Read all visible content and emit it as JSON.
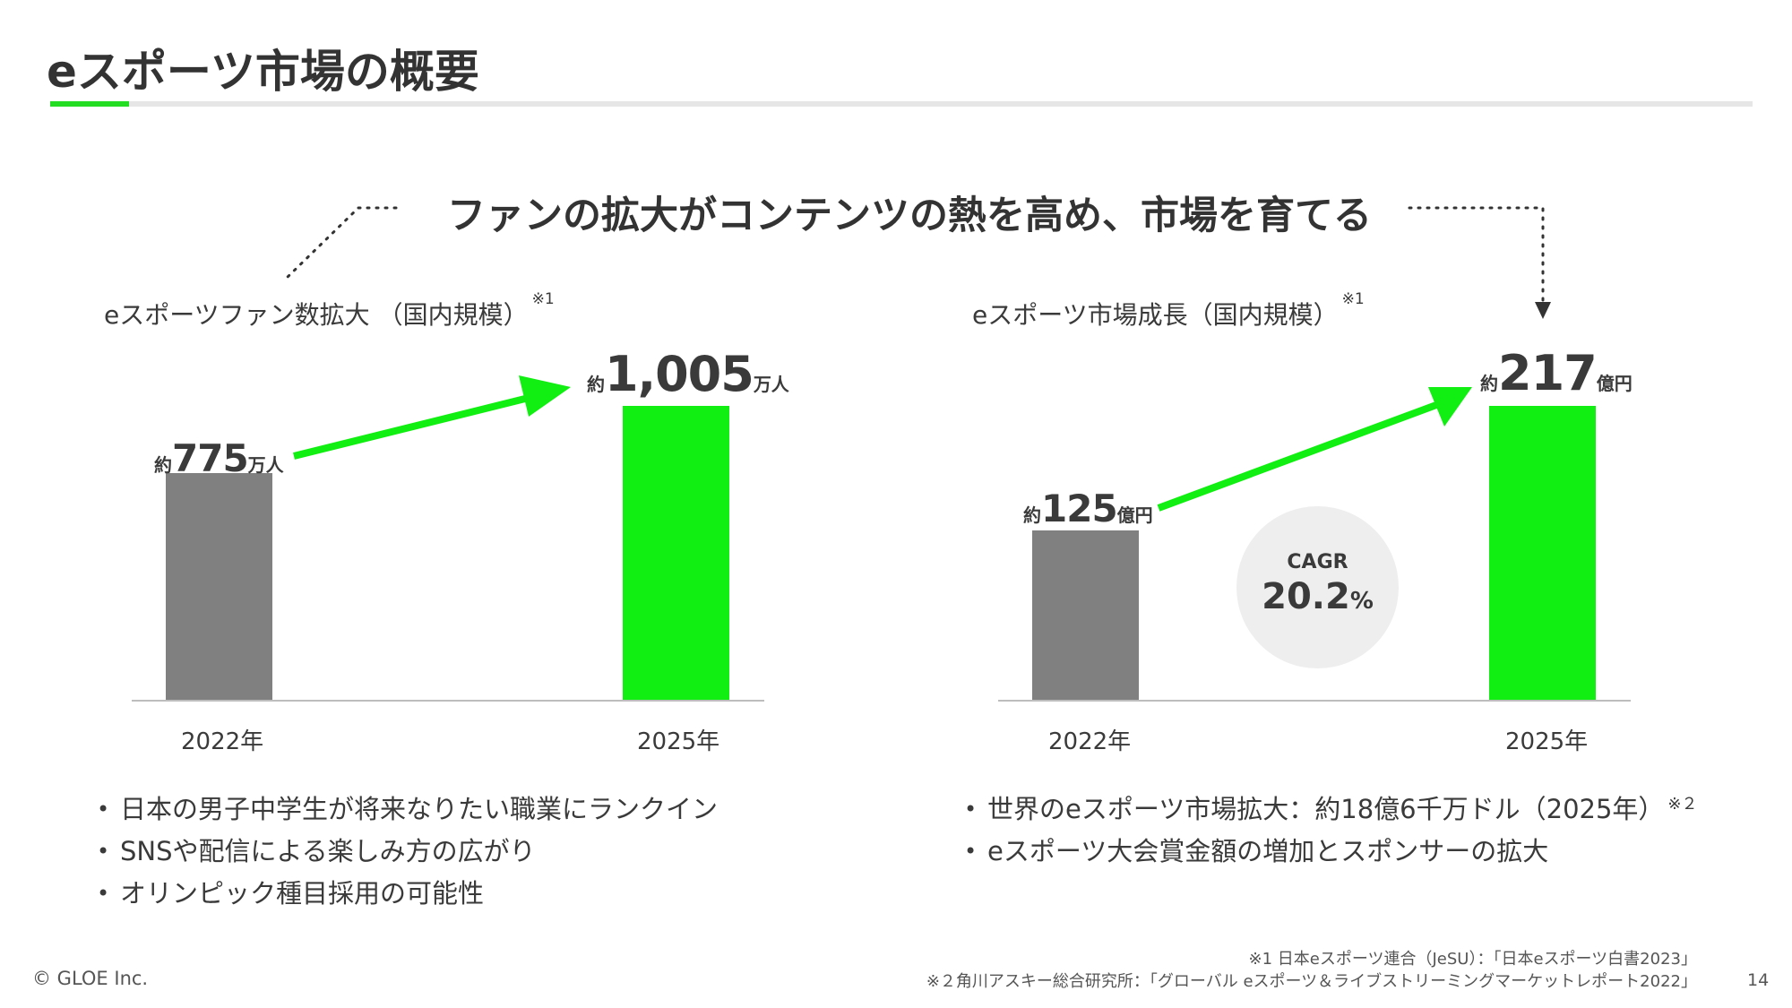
{
  "header": {
    "title": "eスポーツ市場の概要"
  },
  "headline": "ファンの拡大がコンテンツの熱を高め、市場を育てる",
  "colors": {
    "accent": "#11ee11",
    "bar_2022": "#808080",
    "text": "#3a3a3a"
  },
  "chart_data": [
    {
      "type": "bar",
      "title": "eスポーツファン数拡大 （国内規模）",
      "note_ref": "※1",
      "categories": [
        "2022年",
        "2025年"
      ],
      "values": [
        775,
        1005
      ],
      "unit": "万人",
      "value_labels": [
        {
          "prefix": "約",
          "value": "775",
          "unit": "万人"
        },
        {
          "prefix": "約",
          "value": "1,005",
          "unit": "万人"
        }
      ],
      "ylim": [
        0,
        1005
      ],
      "grid": false,
      "legend": "none"
    },
    {
      "type": "bar",
      "title": "eスポーツ市場成長（国内規模）",
      "note_ref": "※1",
      "categories": [
        "2022年",
        "2025年"
      ],
      "values": [
        125,
        217
      ],
      "unit": "億円",
      "value_labels": [
        {
          "prefix": "約",
          "value": "125",
          "unit": "億円"
        },
        {
          "prefix": "約",
          "value": "217",
          "unit": "億円"
        }
      ],
      "ylim": [
        0,
        217
      ],
      "grid": false,
      "legend": "none",
      "annotation": {
        "label": "CAGR",
        "value": "20.2",
        "unit": "%"
      }
    }
  ],
  "left_bullets": {
    "bullet_symbol": "•",
    "items": [
      "日本の男子中学生が将来なりたい職業にランクイン",
      "SNSや配信による楽しみ方の広がり",
      "オリンピック種目採用の可能性"
    ]
  },
  "right_bullets": {
    "items": [
      {
        "text": "世界のeスポーツ市場拡大：約18億6千万ドル（2025年）",
        "note": "※２"
      },
      {
        "text": "eスポーツ大会賞金額の増加とスポンサーの拡大",
        "note": ""
      }
    ]
  },
  "footer": {
    "copyright": "© GLOE Inc.",
    "page_number": "14",
    "notes": [
      "※1 日本eスポーツ連合（JeSU）：「日本eスポーツ白書2023」",
      "※２角川アスキー総合研究所：「グローバル eスポーツ＆ライブストリーミングマーケットレポート2022」"
    ]
  }
}
